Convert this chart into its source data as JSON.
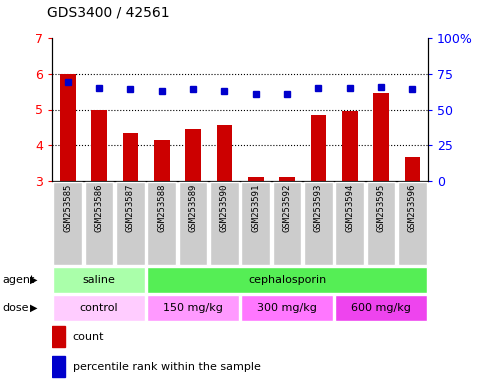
{
  "title": "GDS3400 / 42561",
  "samples": [
    "GSM253585",
    "GSM253586",
    "GSM253587",
    "GSM253588",
    "GSM253589",
    "GSM253590",
    "GSM253591",
    "GSM253592",
    "GSM253593",
    "GSM253594",
    "GSM253595",
    "GSM253596"
  ],
  "bar_values": [
    6.0,
    5.0,
    4.35,
    4.15,
    4.45,
    4.57,
    3.12,
    3.1,
    4.85,
    4.95,
    5.45,
    3.68
  ],
  "percentile_values": [
    69,
    65,
    64,
    63,
    64,
    63,
    61,
    61,
    65,
    65,
    66,
    64
  ],
  "bar_color": "#CC0000",
  "dot_color": "#0000CC",
  "ylim_left": [
    3,
    7
  ],
  "ylim_right": [
    0,
    100
  ],
  "yticks_left": [
    3,
    4,
    5,
    6,
    7
  ],
  "yticks_right": [
    0,
    25,
    50,
    75,
    100
  ],
  "ytick_labels_right": [
    "0",
    "25",
    "50",
    "75",
    "100%"
  ],
  "hline_values": [
    4,
    5,
    6
  ],
  "agent_labels": [
    {
      "label": "saline",
      "start": 0,
      "end": 2,
      "color": "#AAFFAA"
    },
    {
      "label": "cephalosporin",
      "start": 3,
      "end": 11,
      "color": "#55EE55"
    }
  ],
  "dose_labels": [
    {
      "label": "control",
      "start": 0,
      "end": 2,
      "color": "#FFCCFF"
    },
    {
      "label": "150 mg/kg",
      "start": 3,
      "end": 5,
      "color": "#FF99FF"
    },
    {
      "label": "300 mg/kg",
      "start": 6,
      "end": 8,
      "color": "#FF77FF"
    },
    {
      "label": "600 mg/kg",
      "start": 9,
      "end": 11,
      "color": "#EE44EE"
    }
  ],
  "legend_count_color": "#CC0000",
  "legend_dot_color": "#0000CC",
  "sample_box_color": "#CCCCCC",
  "bar_width": 0.5
}
